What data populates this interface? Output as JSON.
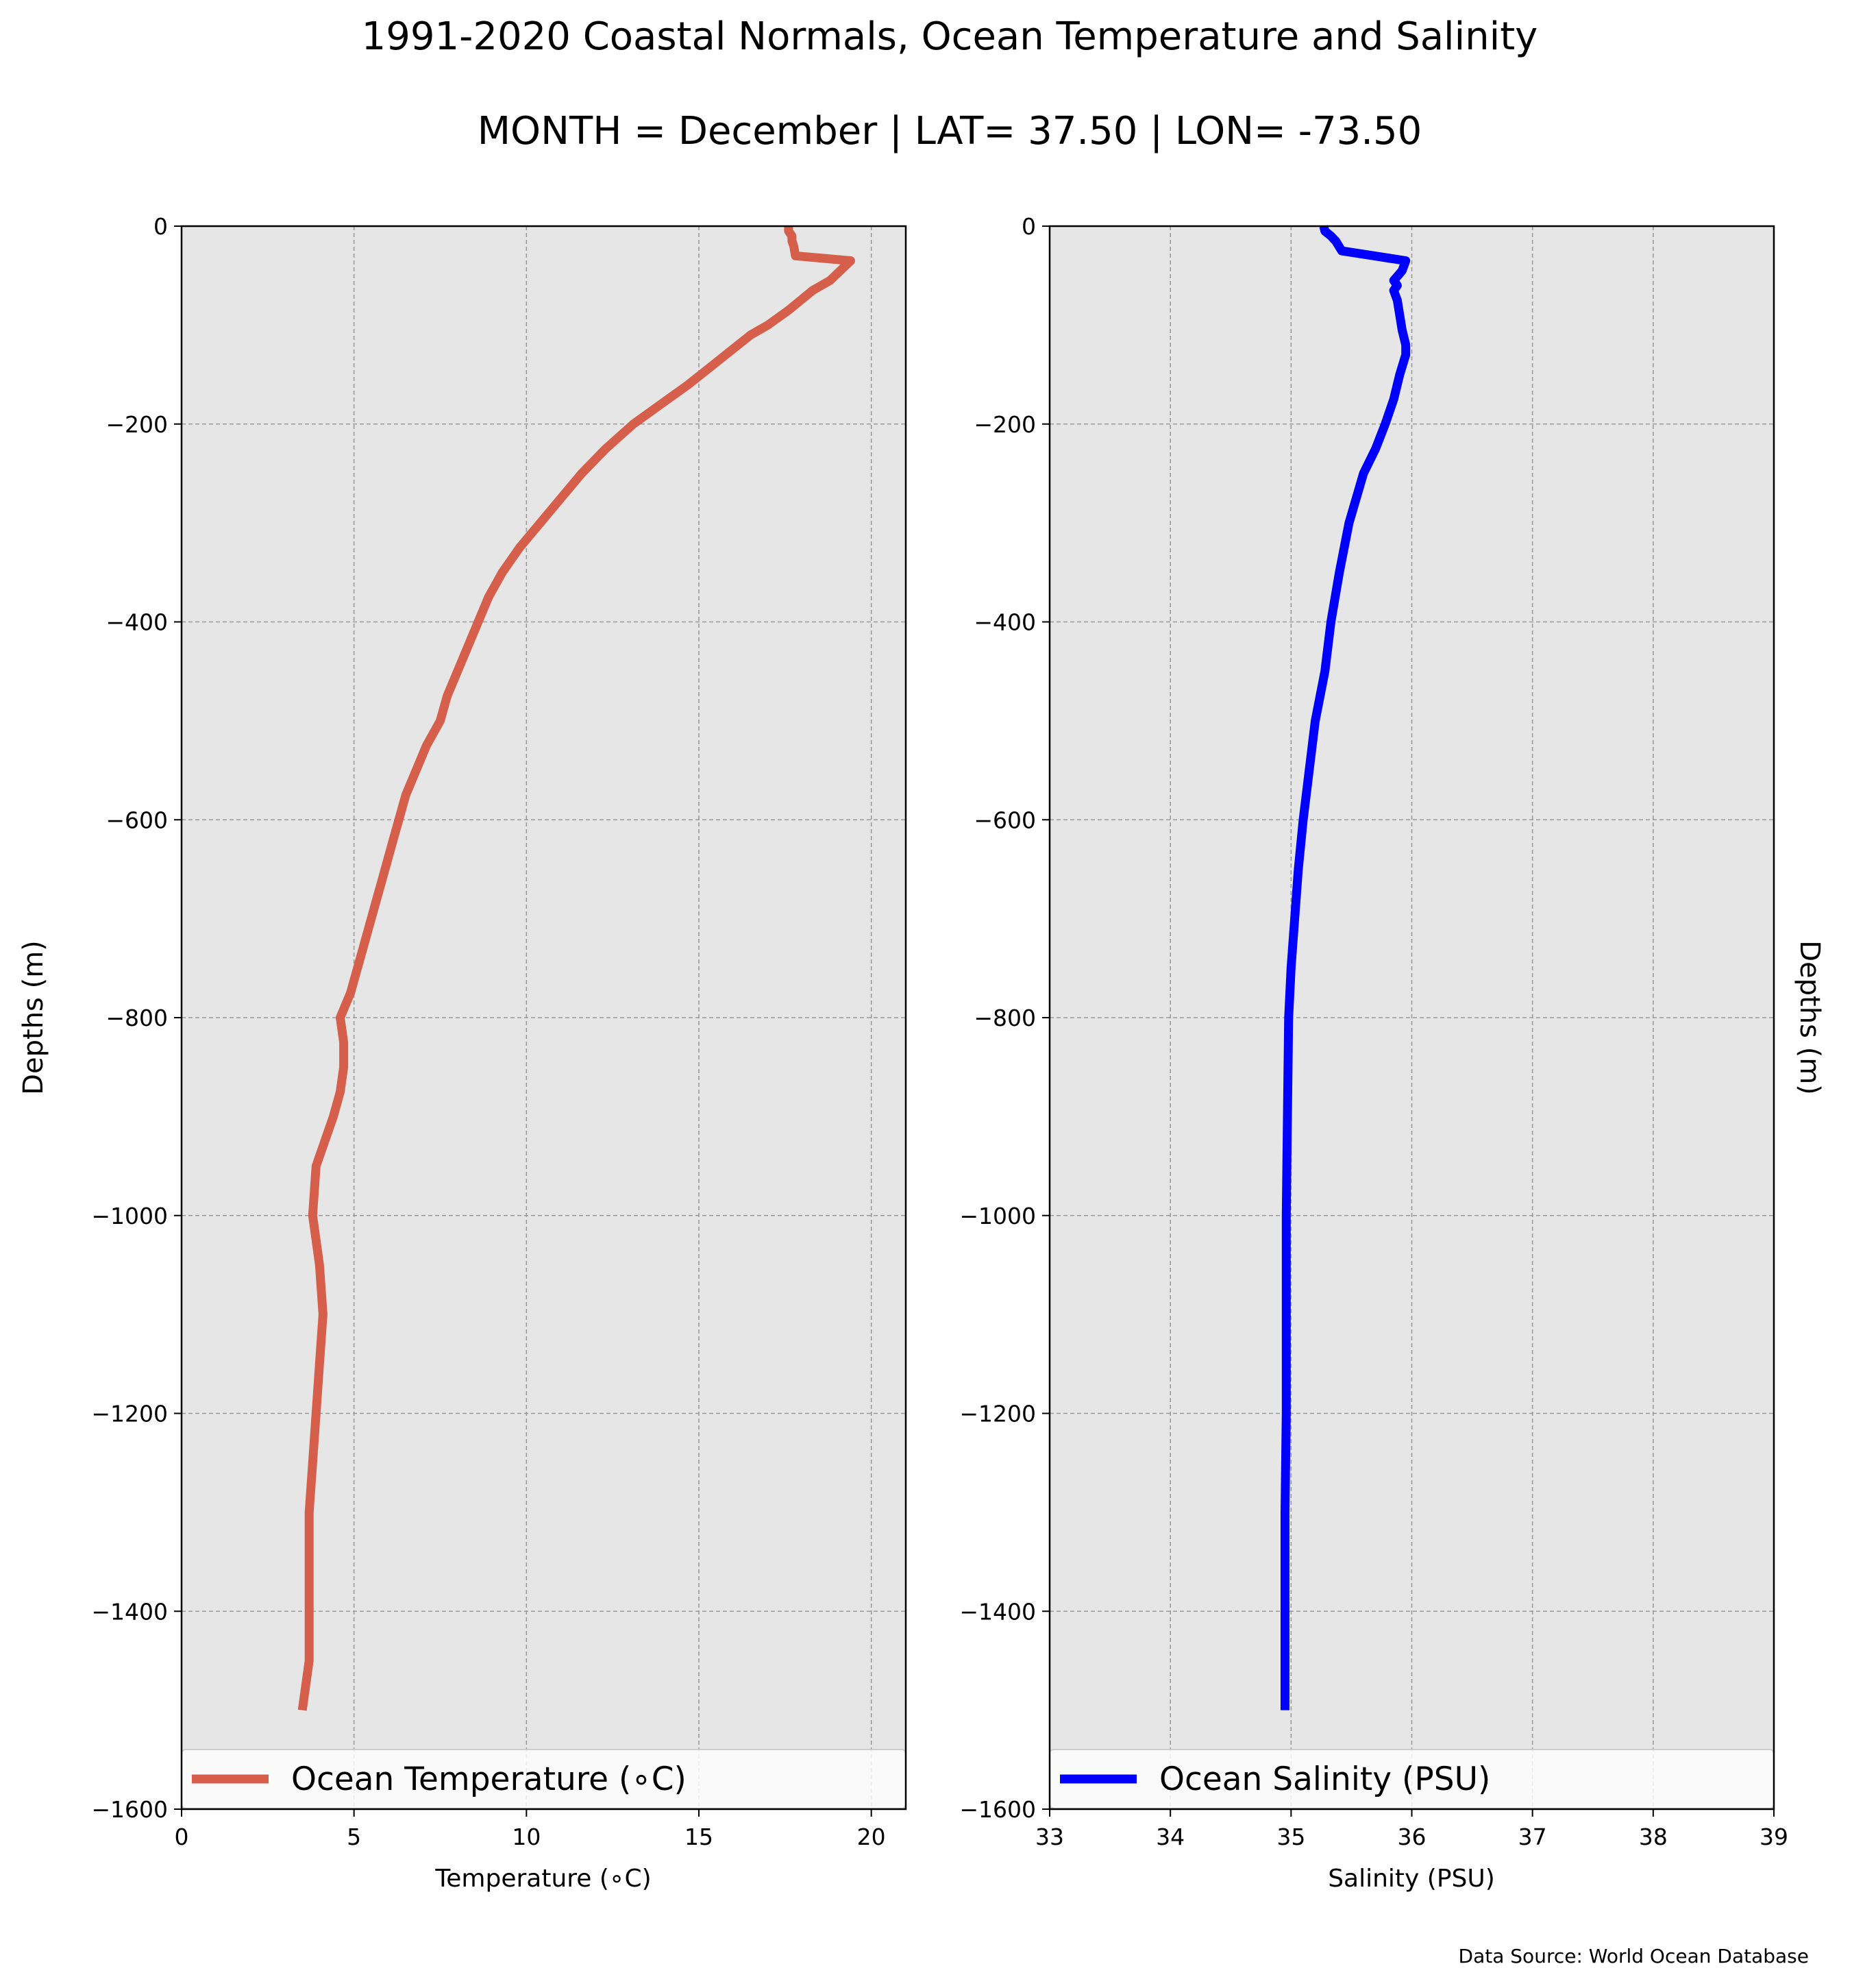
{
  "title": "1991-2020 Coastal Normals, Ocean Temperature and Salinity",
  "subtitle": "MONTH = December | LAT= 37.50 | LON= -73.50",
  "source_note": "Data Source: World Ocean Database",
  "colors": {
    "background": "#ffffff",
    "axes_face": "#e6e6e6",
    "grid": "#999999",
    "temperature_line": "#d65f4b",
    "salinity_line": "#0000ff"
  },
  "chart_data": [
    {
      "type": "line",
      "xlabel": "Temperature (∘C)",
      "ylabel": "Depths (m)",
      "ylabel_side": "left",
      "xlim": [
        0,
        21
      ],
      "ylim": [
        -1600,
        0
      ],
      "xticks": [
        "0",
        "5",
        "10",
        "15",
        "20"
      ],
      "xtick_values": [
        0,
        5,
        10,
        15,
        20
      ],
      "yticks": [
        "0",
        "−200",
        "−400",
        "−600",
        "−800",
        "−1000",
        "−1200",
        "−1400",
        "−1600"
      ],
      "ytick_values": [
        0,
        -200,
        -400,
        -600,
        -800,
        -1000,
        -1200,
        -1400,
        -1600
      ],
      "grid": true,
      "legend": "bottom",
      "series": [
        {
          "name": "Ocean Temperature (∘C)",
          "x": [
            17.6,
            17.6,
            17.7,
            17.7,
            17.75,
            17.8,
            19.4,
            19.1,
            18.8,
            18.3,
            17.6,
            17.0,
            16.5,
            15.6,
            14.7,
            13.9,
            13.1,
            12.3,
            11.6,
            11.0,
            10.4,
            9.8,
            9.3,
            8.9,
            8.6,
            8.3,
            8.0,
            7.7,
            7.5,
            7.1,
            6.8,
            6.5,
            6.3,
            6.1,
            5.9,
            5.7,
            5.5,
            5.3,
            5.1,
            4.9,
            4.6,
            4.7,
            4.7,
            4.6,
            4.4,
            3.9,
            3.8,
            4.0,
            4.1,
            4.0,
            3.9,
            3.8,
            3.7,
            3.7,
            3.7,
            3.5
          ],
          "y": [
            0,
            -5,
            -10,
            -15,
            -20,
            -30,
            -35,
            -45,
            -55,
            -65,
            -85,
            -100,
            -110,
            -135,
            -160,
            -180,
            -200,
            -225,
            -250,
            -275,
            -300,
            -325,
            -350,
            -375,
            -400,
            -425,
            -450,
            -475,
            -500,
            -525,
            -550,
            -575,
            -600,
            -625,
            -650,
            -675,
            -700,
            -725,
            -750,
            -775,
            -800,
            -825,
            -850,
            -875,
            -900,
            -950,
            -1000,
            -1050,
            -1100,
            -1150,
            -1200,
            -1250,
            -1300,
            -1400,
            -1450,
            -1500
          ]
        }
      ]
    },
    {
      "type": "line",
      "xlabel": "Salinity (PSU)",
      "ylabel": "Depths (m)",
      "ylabel_side": "right",
      "xlim": [
        33,
        39
      ],
      "ylim": [
        -1600,
        0
      ],
      "xticks": [
        "33",
        "34",
        "35",
        "36",
        "37",
        "38",
        "39"
      ],
      "xtick_values": [
        33,
        34,
        35,
        36,
        37,
        38,
        39
      ],
      "yticks": [
        "0",
        "−200",
        "−400",
        "−600",
        "−800",
        "−1000",
        "−1200",
        "−1400",
        "−1600"
      ],
      "ytick_values": [
        0,
        -200,
        -400,
        -600,
        -800,
        -1000,
        -1200,
        -1400,
        -1600
      ],
      "grid": true,
      "legend": "bottom",
      "series": [
        {
          "name": "Ocean Salinity (PSU)",
          "x": [
            35.27,
            35.28,
            35.33,
            35.37,
            35.42,
            35.95,
            35.92,
            35.85,
            35.88,
            35.85,
            35.88,
            35.9,
            35.92,
            35.95,
            35.95,
            35.9,
            35.85,
            35.78,
            35.7,
            35.6,
            35.48,
            35.4,
            35.33,
            35.28,
            35.2,
            35.15,
            35.1,
            35.06,
            35.03,
            35.0,
            34.98,
            34.97,
            34.96,
            34.96,
            34.96,
            34.95,
            34.95,
            34.95,
            34.95
          ],
          "y": [
            0,
            -5,
            -10,
            -15,
            -25,
            -35,
            -45,
            -55,
            -60,
            -65,
            -75,
            -90,
            -105,
            -120,
            -130,
            -150,
            -175,
            -200,
            -225,
            -250,
            -300,
            -350,
            -400,
            -450,
            -500,
            -550,
            -600,
            -650,
            -700,
            -750,
            -800,
            -900,
            -1000,
            -1100,
            -1200,
            -1300,
            -1400,
            -1450,
            -1500
          ]
        }
      ]
    }
  ]
}
